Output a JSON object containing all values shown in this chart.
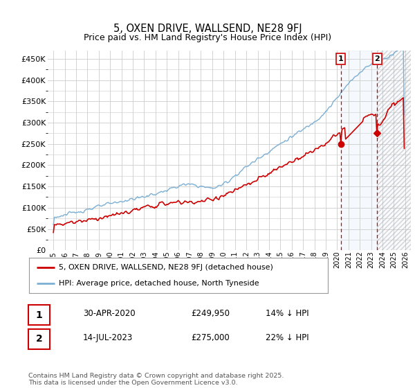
{
  "title": "5, OXEN DRIVE, WALLSEND, NE28 9FJ",
  "subtitle": "Price paid vs. HM Land Registry's House Price Index (HPI)",
  "ylim": [
    0,
    470000
  ],
  "yticks": [
    0,
    50000,
    100000,
    150000,
    200000,
    250000,
    300000,
    350000,
    400000,
    450000
  ],
  "ytick_labels": [
    "£0",
    "£50K",
    "£100K",
    "£150K",
    "£200K",
    "£250K",
    "£300K",
    "£350K",
    "£400K",
    "£450K"
  ],
  "hpi_color": "#7bafd4",
  "price_color": "#cc0000",
  "vline_color": "#cc0000",
  "marker1_date_num": 2020.33,
  "marker2_date_num": 2023.54,
  "marker1_price": 249950,
  "marker2_price": 275000,
  "legend_line1": "5, OXEN DRIVE, WALLSEND, NE28 9FJ (detached house)",
  "legend_line2": "HPI: Average price, detached house, North Tyneside",
  "table_row1": [
    "1",
    "30-APR-2020",
    "£249,950",
    "14% ↓ HPI"
  ],
  "table_row2": [
    "2",
    "14-JUL-2023",
    "£275,000",
    "22% ↓ HPI"
  ],
  "footer": "Contains HM Land Registry data © Crown copyright and database right 2025.\nThis data is licensed under the Open Government Licence v3.0.",
  "background_color": "#ffffff",
  "grid_color": "#cccccc",
  "xlim_start": 1994.5,
  "xlim_end": 2026.5
}
